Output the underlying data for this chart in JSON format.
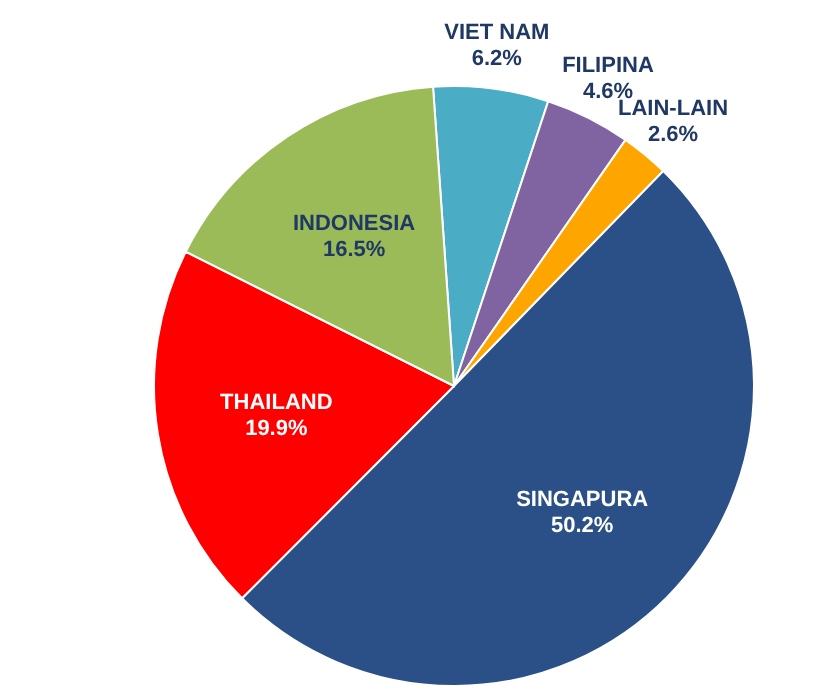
{
  "chart_data": {
    "type": "pie",
    "categories": [
      "VIET NAM",
      "FILIPINA",
      "LAIN-LAIN",
      "SINGAPURA",
      "THAILAND",
      "INDONESIA"
    ],
    "values": [
      6.2,
      4.6,
      2.6,
      50.2,
      19.9,
      16.5
    ],
    "value_labels": [
      "6.2%",
      "4.6%",
      "2.6%",
      "50.2%",
      "19.9%",
      "16.5%"
    ],
    "colors": [
      "#4bacc6",
      "#8064a2",
      "#ffa500",
      "#2a5087",
      "#ff0000",
      "#9bbb59"
    ],
    "legend": false
  }
}
